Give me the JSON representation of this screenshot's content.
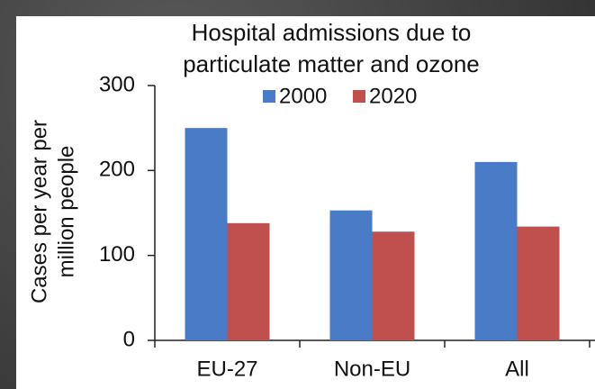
{
  "chart_data": {
    "type": "bar",
    "title": [
      "Hospital admissions due to",
      "particulate matter and ozone"
    ],
    "ylabel": [
      "Cases per year per",
      "million people"
    ],
    "categories": [
      "EU-27",
      "Non-EU",
      "All"
    ],
    "series": [
      {
        "name": "2000",
        "color": "#4a7bc6",
        "values": [
          250,
          153,
          210
        ]
      },
      {
        "name": "2020",
        "color": "#c0504d",
        "values": [
          138,
          128,
          134
        ]
      }
    ],
    "ylim": [
      0,
      300
    ],
    "yticks": [
      0,
      100,
      200,
      300
    ],
    "grid": false,
    "legend": "top"
  }
}
